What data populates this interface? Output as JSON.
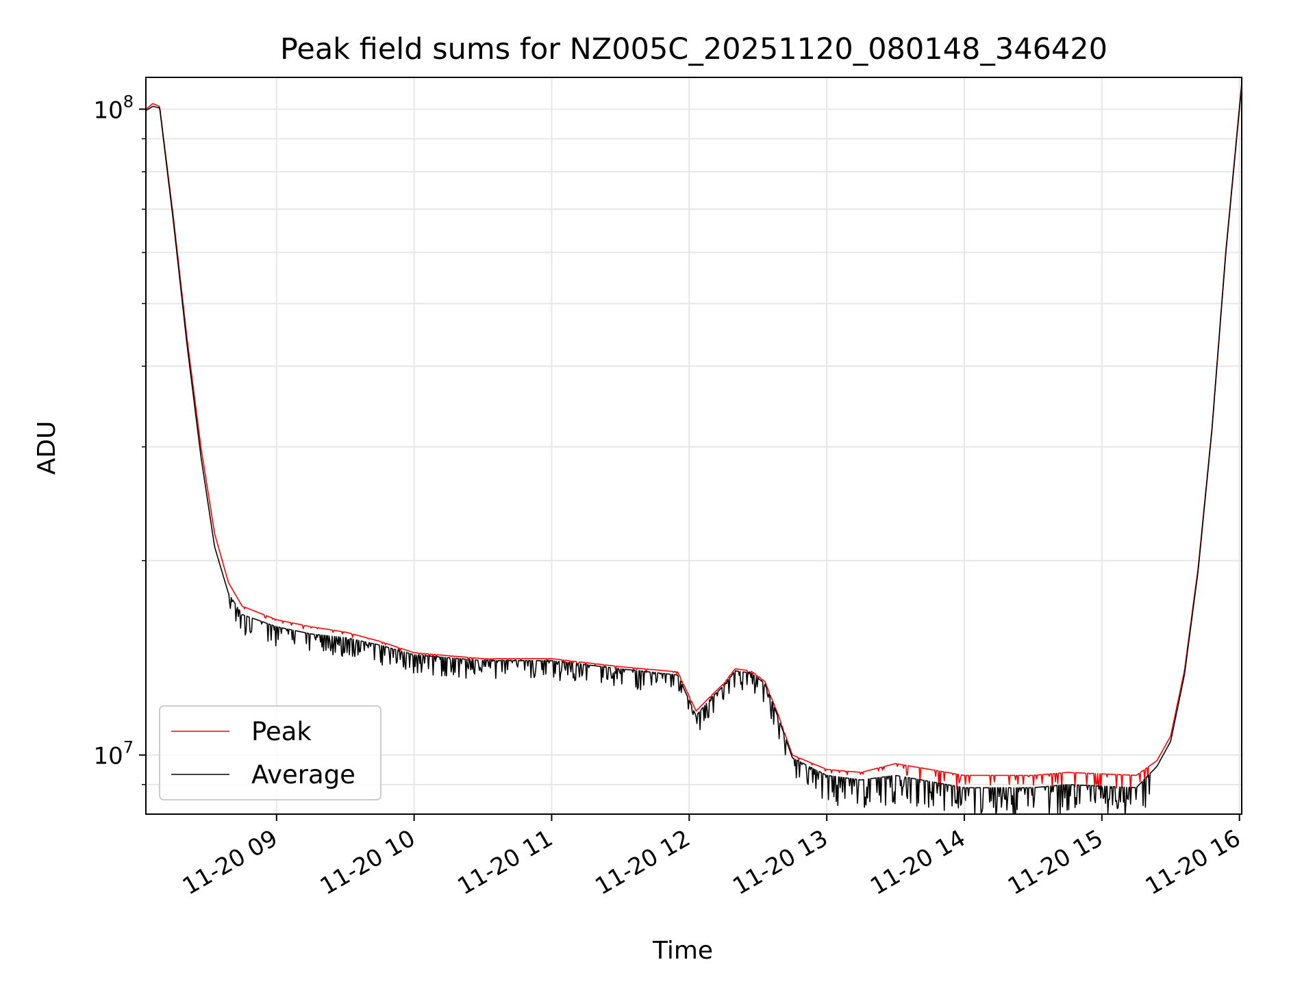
{
  "chart_data": {
    "type": "line",
    "title": "Peak field sums for NZ005C_20251120_080148_346420",
    "xlabel": "Time",
    "ylabel": "ADU",
    "yscale": "log",
    "xlim": [
      "2025-11-20 08:03",
      "2025-11-20 16:01"
    ],
    "ylim": [
      8100000,
      112000000
    ],
    "grid": true,
    "legend_position": "lower-left",
    "x_ticks": [
      {
        "value": "2025-11-20 09:00",
        "label": "11-20 09"
      },
      {
        "value": "2025-11-20 10:00",
        "label": "11-20 10"
      },
      {
        "value": "2025-11-20 11:00",
        "label": "11-20 11"
      },
      {
        "value": "2025-11-20 12:00",
        "label": "11-20 12"
      },
      {
        "value": "2025-11-20 13:00",
        "label": "11-20 13"
      },
      {
        "value": "2025-11-20 14:00",
        "label": "11-20 14"
      },
      {
        "value": "2025-11-20 15:00",
        "label": "11-20 15"
      },
      {
        "value": "2025-11-20 16:00",
        "label": "11-20 16"
      }
    ],
    "y_ticks": [
      {
        "value": 10000000,
        "base": "10",
        "exp": "7"
      },
      {
        "value": 100000000,
        "base": "10",
        "exp": "8"
      }
    ],
    "series": [
      {
        "name": "Peak",
        "color": "#ff0000",
        "points": [
          [
            "2025-11-20 08:03",
            100000000
          ],
          [
            "2025-11-20 08:06",
            102000000
          ],
          [
            "2025-11-20 08:09",
            101000000
          ],
          [
            "2025-11-20 08:15",
            68000000
          ],
          [
            "2025-11-20 08:21",
            44000000
          ],
          [
            "2025-11-20 08:27",
            30000000
          ],
          [
            "2025-11-20 08:33",
            22000000
          ],
          [
            "2025-11-20 08:39",
            18500000
          ],
          [
            "2025-11-20 08:45",
            17000000
          ],
          [
            "2025-11-20 09:00",
            16200000
          ],
          [
            "2025-11-20 09:15",
            15800000
          ],
          [
            "2025-11-20 09:30",
            15500000
          ],
          [
            "2025-11-20 09:45",
            15000000
          ],
          [
            "2025-11-20 10:00",
            14400000
          ],
          [
            "2025-11-20 10:30",
            14100000
          ],
          [
            "2025-11-20 11:00",
            14100000
          ],
          [
            "2025-11-20 11:30",
            13700000
          ],
          [
            "2025-11-20 11:55",
            13450000
          ],
          [
            "2025-11-20 12:03",
            11700000
          ],
          [
            "2025-11-20 12:09",
            12300000
          ],
          [
            "2025-11-20 12:15",
            12900000
          ],
          [
            "2025-11-20 12:20",
            13600000
          ],
          [
            "2025-11-20 12:27",
            13500000
          ],
          [
            "2025-11-20 12:33",
            13000000
          ],
          [
            "2025-11-20 12:39",
            11500000
          ],
          [
            "2025-11-20 12:45",
            10000000
          ],
          [
            "2025-11-20 13:00",
            9500000
          ],
          [
            "2025-11-20 13:15",
            9400000
          ],
          [
            "2025-11-20 13:30",
            9700000
          ],
          [
            "2025-11-20 13:45",
            9500000
          ],
          [
            "2025-11-20 14:00",
            9300000
          ],
          [
            "2025-11-20 14:30",
            9300000
          ],
          [
            "2025-11-20 14:45",
            9400000
          ],
          [
            "2025-11-20 15:00",
            9350000
          ],
          [
            "2025-11-20 15:15",
            9300000
          ],
          [
            "2025-11-20 15:24",
            9800000
          ],
          [
            "2025-11-20 15:30",
            10700000
          ],
          [
            "2025-11-20 15:36",
            13500000
          ],
          [
            "2025-11-20 15:42",
            19500000
          ],
          [
            "2025-11-20 15:48",
            32000000
          ],
          [
            "2025-11-20 15:54",
            60000000
          ],
          [
            "2025-11-20 16:01",
            110000000
          ]
        ]
      },
      {
        "name": "Average",
        "color": "#000000",
        "points": [
          [
            "2025-11-20 08:03",
            99500000
          ],
          [
            "2025-11-20 08:06",
            101000000
          ],
          [
            "2025-11-20 08:09",
            100500000
          ],
          [
            "2025-11-20 08:15",
            67000000
          ],
          [
            "2025-11-20 08:21",
            43000000
          ],
          [
            "2025-11-20 08:27",
            29000000
          ],
          [
            "2025-11-20 08:33",
            21000000
          ],
          [
            "2025-11-20 08:39",
            17800000
          ],
          [
            "2025-11-20 08:45",
            16500000
          ],
          [
            "2025-11-20 09:00",
            15800000
          ],
          [
            "2025-11-20 09:15",
            15400000
          ],
          [
            "2025-11-20 09:30",
            15200000
          ],
          [
            "2025-11-20 09:45",
            14800000
          ],
          [
            "2025-11-20 10:00",
            14300000
          ],
          [
            "2025-11-20 10:30",
            14000000
          ],
          [
            "2025-11-20 11:00",
            14000000
          ],
          [
            "2025-11-20 11:30",
            13600000
          ],
          [
            "2025-11-20 11:55",
            13300000
          ],
          [
            "2025-11-20 12:03",
            11500000
          ],
          [
            "2025-11-20 12:09",
            12200000
          ],
          [
            "2025-11-20 12:15",
            12800000
          ],
          [
            "2025-11-20 12:20",
            13500000
          ],
          [
            "2025-11-20 12:27",
            13400000
          ],
          [
            "2025-11-20 12:33",
            12900000
          ],
          [
            "2025-11-20 12:39",
            11400000
          ],
          [
            "2025-11-20 12:45",
            9900000
          ],
          [
            "2025-11-20 13:00",
            9300000
          ],
          [
            "2025-11-20 13:15",
            9150000
          ],
          [
            "2025-11-20 13:30",
            9300000
          ],
          [
            "2025-11-20 13:45",
            9100000
          ],
          [
            "2025-11-20 14:00",
            8900000
          ],
          [
            "2025-11-20 14:30",
            8900000
          ],
          [
            "2025-11-20 14:45",
            9000000
          ],
          [
            "2025-11-20 15:00",
            8950000
          ],
          [
            "2025-11-20 15:15",
            8900000
          ],
          [
            "2025-11-20 15:24",
            9600000
          ],
          [
            "2025-11-20 15:30",
            10500000
          ],
          [
            "2025-11-20 15:36",
            13300000
          ],
          [
            "2025-11-20 15:42",
            19300000
          ],
          [
            "2025-11-20 15:48",
            31800000
          ],
          [
            "2025-11-20 15:54",
            59500000
          ],
          [
            "2025-11-20 16:01",
            109000000
          ]
        ]
      }
    ]
  }
}
